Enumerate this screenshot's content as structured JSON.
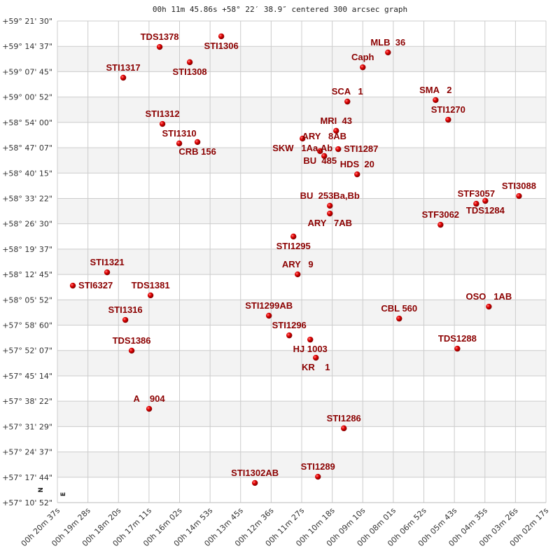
{
  "chart_data": {
    "type": "scatter",
    "title": "00h 11m 45.86s +58° 22′ 38.9″ centered 300 arcsec graph",
    "x_unit": "RA (minutes of time)",
    "y_unit": "Dec (degrees)",
    "x_reversed": true,
    "xlim": [
      20.6167,
      2.2833
    ],
    "ylim": [
      57.1811,
      59.3583
    ],
    "grid": true,
    "alternating_row_shading": true,
    "compass": {
      "north": "N",
      "east": "E"
    },
    "xticks": [
      "00h 20m 37s",
      "00h 19m 28s",
      "00h 18m 20s",
      "00h 17m 11s",
      "00h 16m 02s",
      "00h 14m 53s",
      "00h 13m 45s",
      "00h 12m 36s",
      "00h 11m 27s",
      "00h 10m 18s",
      "00h 09m 10s",
      "00h 08m 01s",
      "00h 06m 52s",
      "00h 05m 43s",
      "00h 04m 35s",
      "00h 03m 26s",
      "00h 02m 17s"
    ],
    "yticks": [
      "+59° 21' 30\"",
      "+59° 14' 37\"",
      "+59° 07' 45\"",
      "+59° 00' 52\"",
      "+58° 54' 00\"",
      "+58° 47' 07\"",
      "+58° 40' 15\"",
      "+58° 33' 22\"",
      "+58° 26' 30\"",
      "+58° 19' 37\"",
      "+58° 12' 45\"",
      "+58° 05' 52\"",
      "+57° 58' 60\"",
      "+57° 52' 07\"",
      "+57° 45' 14\"",
      "+57° 38' 22\"",
      "+57° 31' 29\"",
      "+57° 24' 37\"",
      "+57° 17' 44\"",
      "+57° 10' 52\""
    ],
    "colors": {
      "marker": "#dd0000",
      "label": "#8b0000",
      "grid": "#cccccc",
      "band": "#f3f3f3"
    },
    "points": [
      {
        "name": "STI1306",
        "ra": 14.467,
        "dec": 59.289
      },
      {
        "name": "TDS1378",
        "ra": 16.78,
        "dec": 59.241
      },
      {
        "name": "STI1308",
        "ra": 15.65,
        "dec": 59.172
      },
      {
        "name": "STI1317",
        "ra": 18.146,
        "dec": 59.102
      },
      {
        "name": "STI1312",
        "ra": 16.675,
        "dec": 58.893
      },
      {
        "name": "STI1310",
        "ra": 16.044,
        "dec": 58.805
      },
      {
        "name": "CRB 156",
        "ra": 15.361,
        "dec": 58.811
      },
      {
        "name": "MLB  36",
        "ra": 8.212,
        "dec": 59.216
      },
      {
        "name": "Caph",
        "ra": 9.158,
        "dec": 59.149
      },
      {
        "name": "SCA   1",
        "ra": 9.736,
        "dec": 58.994
      },
      {
        "name": "SMA   2",
        "ra": 6.425,
        "dec": 59.001
      },
      {
        "name": "STI1270",
        "ra": 5.952,
        "dec": 58.912
      },
      {
        "name": "MRI  43",
        "ra": 10.157,
        "dec": 58.862
      },
      {
        "name": "SKW   1Aa,Ab",
        "ra": 11.418,
        "dec": 58.827
      },
      {
        "name": "BU  485",
        "ra": 10.761,
        "dec": 58.77
      },
      {
        "name": "STI1287",
        "ra": 10.078,
        "dec": 58.779
      },
      {
        "name": "ARY   8AB",
        "ra": 10.603,
        "dec": 58.748
      },
      {
        "name": "HDS  20",
        "ra": 9.368,
        "dec": 58.665
      },
      {
        "name": "BU  253Ba,Bb",
        "ra": 10.393,
        "dec": 58.523
      },
      {
        "name": "ARY   7AB",
        "ra": 10.393,
        "dec": 58.488
      },
      {
        "name": "STF3062",
        "ra": 6.241,
        "dec": 58.437
      },
      {
        "name": "STF3057",
        "ra": 4.9,
        "dec": 58.532
      },
      {
        "name": "TDS1284",
        "ra": 4.559,
        "dec": 58.545
      },
      {
        "name": "STI3088",
        "ra": 3.297,
        "dec": 58.567
      },
      {
        "name": "STI1295",
        "ra": 11.76,
        "dec": 58.384
      },
      {
        "name": "STI1321",
        "ra": 18.751,
        "dec": 58.222
      },
      {
        "name": "STI6327",
        "ra": 20.038,
        "dec": 58.162
      },
      {
        "name": "TDS1381",
        "ra": 17.121,
        "dec": 58.118
      },
      {
        "name": "STI1316",
        "ra": 18.067,
        "dec": 58.007
      },
      {
        "name": "TDS1386",
        "ra": 17.831,
        "dec": 57.868
      },
      {
        "name": "ARY   9",
        "ra": 11.602,
        "dec": 58.213
      },
      {
        "name": "STI1299AB",
        "ra": 12.68,
        "dec": 58.026
      },
      {
        "name": "STI1296",
        "ra": 11.917,
        "dec": 57.937
      },
      {
        "name": "HJ 1003",
        "ra": 11.129,
        "dec": 57.918
      },
      {
        "name": "KR    1",
        "ra": 10.919,
        "dec": 57.836
      },
      {
        "name": "CBL 560",
        "ra": 7.792,
        "dec": 58.013
      },
      {
        "name": "OSO   1AB",
        "ra": 4.428,
        "dec": 58.067
      },
      {
        "name": "TDS1288",
        "ra": 5.61,
        "dec": 57.877
      },
      {
        "name": "A    904",
        "ra": 17.174,
        "dec": 57.605
      },
      {
        "name": "STI1286",
        "ra": 9.868,
        "dec": 57.517
      },
      {
        "name": "STI1302AB",
        "ra": 13.206,
        "dec": 57.27
      },
      {
        "name": "STI1289",
        "ra": 10.84,
        "dec": 57.298
      }
    ]
  }
}
